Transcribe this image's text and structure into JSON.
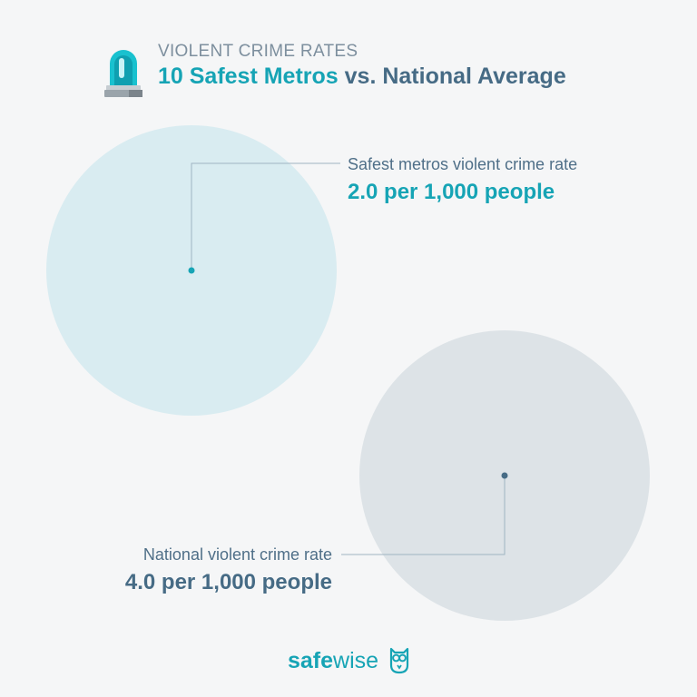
{
  "header": {
    "eyebrow": "VIOLENT CRIME RATES",
    "title_accent": "10 Safest Metros",
    "title_rest": " vs. National Average",
    "icon": "siren-icon"
  },
  "chart_data": {
    "type": "bubble",
    "unit": "per 1,000 people",
    "series": [
      {
        "name": "Safest metros violent crime rate",
        "value": 2.0,
        "value_label": "2.0 per 1,000 people",
        "color": "#d9ecf1",
        "dot_color": "#16a4b5"
      },
      {
        "name": "National violent crime rate",
        "value": 4.0,
        "value_label": "4.0 per 1,000 people",
        "color": "#dde3e7",
        "dot_color": "#466b85"
      }
    ]
  },
  "footer": {
    "brand_a": "safe",
    "brand_b": "wise",
    "logo_icon": "owl-icon"
  },
  "colors": {
    "background": "#f5f6f7",
    "accent": "#16a4b5",
    "navy": "#466b85",
    "leader": "#9fb4c2"
  }
}
